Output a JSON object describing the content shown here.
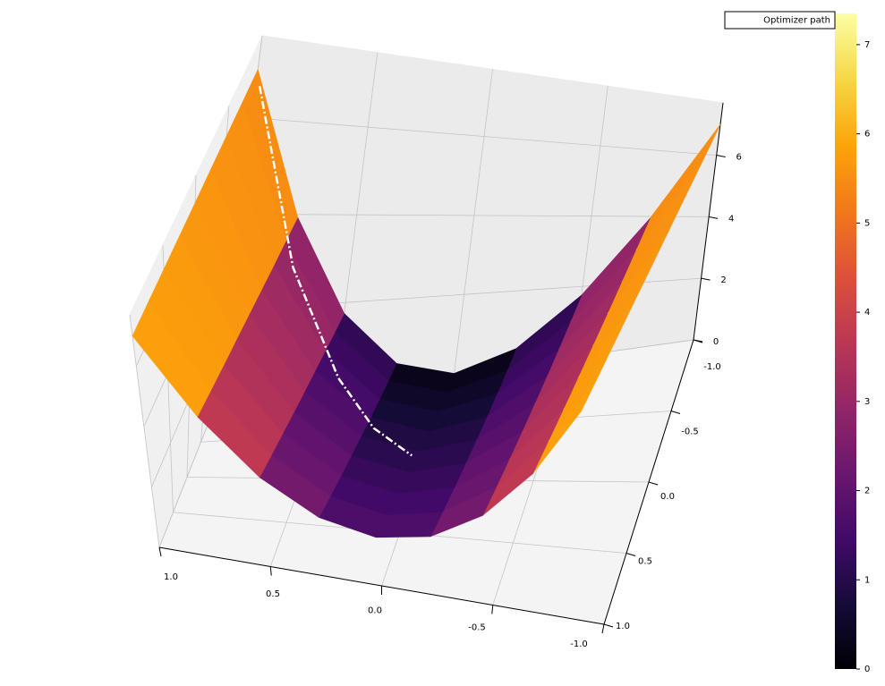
{
  "chart_data": {
    "type": "surface3d",
    "x": [
      -1,
      -0.75,
      -0.5,
      -0.25,
      0,
      0.25,
      0.5,
      0.75,
      1
    ],
    "y": [
      -1,
      -0.75,
      -0.5,
      -0.25,
      0,
      0.25,
      0.5,
      0.75,
      1
    ],
    "z": [
      [
        7,
        3.94,
        1.75,
        0.44,
        0,
        0.44,
        1.75,
        3.94,
        7
      ],
      [
        7,
        4.03,
        1.9,
        0.63,
        0.2,
        0.63,
        1.9,
        4.03,
        7
      ],
      [
        7,
        4.11,
        2.05,
        0.81,
        0.4,
        0.81,
        2.05,
        4.11,
        7
      ],
      [
        7,
        4.2,
        2.2,
        1,
        0.6,
        1,
        2.2,
        4.2,
        7
      ],
      [
        7,
        4.29,
        2.35,
        1.19,
        0.8,
        1.19,
        2.35,
        4.29,
        7
      ],
      [
        7,
        4.38,
        2.5,
        1.38,
        1,
        1.38,
        2.5,
        4.38,
        7
      ],
      [
        7,
        4.46,
        2.65,
        1.56,
        1.2,
        1.56,
        2.65,
        4.46,
        7
      ],
      [
        7,
        4.55,
        2.8,
        1.75,
        1.4,
        1.75,
        2.8,
        4.55,
        7
      ],
      [
        7,
        4.64,
        2.95,
        1.94,
        1.6,
        1.94,
        2.95,
        4.64,
        7
      ]
    ],
    "colormap": "inferno",
    "clim": [
      0,
      7.35
    ],
    "colorbar_ticks": [
      0,
      1,
      2,
      3,
      4,
      5,
      6,
      7
    ],
    "xlim": [
      -1,
      1
    ],
    "ylim": [
      -1,
      1
    ],
    "zlim": [
      0,
      7.7
    ],
    "xticks": [
      {
        "value": 1,
        "label": "1.0"
      },
      0.5,
      {
        "value": 0,
        "label": "0.0"
      },
      -0.5,
      {
        "value": -1,
        "label": "-1.0"
      }
    ],
    "yticks": [
      {
        "value": -1,
        "label": "-1.0"
      },
      -0.5,
      {
        "value": 0,
        "label": "0.0"
      },
      0.5,
      {
        "value": 1,
        "label": "1.0"
      }
    ],
    "zticks": [
      0,
      2,
      4,
      6
    ],
    "grid": true,
    "legend": "upper right",
    "path": {
      "name": "Optimizer path",
      "color": "#ffffff",
      "x": [
        0.98,
        0.7,
        0.42,
        0.22,
        0.02
      ],
      "y": [
        -0.98,
        -0.7,
        -0.4,
        -0.15,
        0.05
      ],
      "z": [
        6.72,
        3.55,
        1.63,
        0.99,
        0.84
      ]
    }
  }
}
